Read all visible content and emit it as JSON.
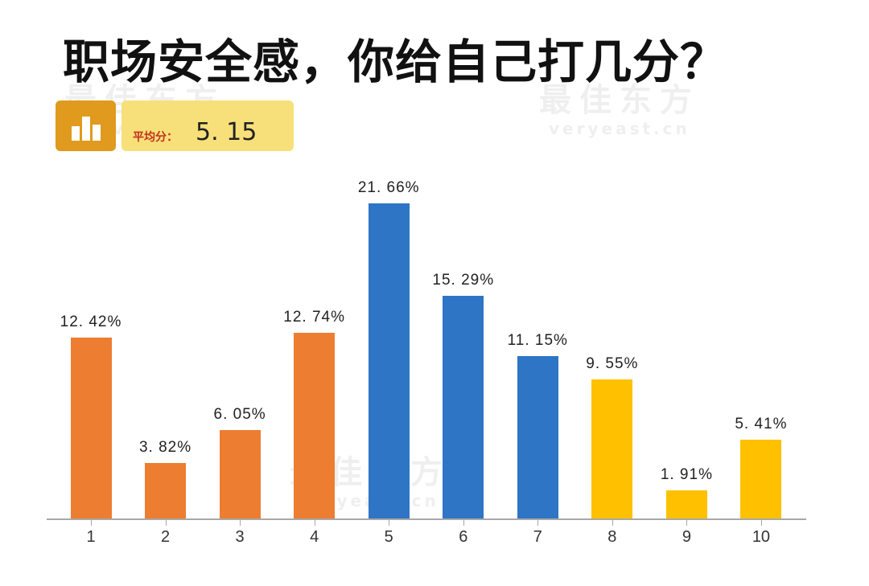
{
  "title": "职场安全感，你给自己打几分？",
  "watermark": {
    "cn": "最佳东方",
    "en": "veryeast.cn"
  },
  "summary": {
    "icon": "bar-chart-icon",
    "label": "平均分：",
    "value": "5. 15"
  },
  "colors": {
    "low": "#ed7d31",
    "mid": "#2e75c5",
    "high": "#ffc000",
    "badge_icon_bg": "#e09a1d",
    "badge_bg": "#f7e07a",
    "label_red": "#c4311c",
    "axis": "#a8a8a8"
  },
  "chart_data": {
    "type": "bar",
    "title": "职场安全感，你给自己打几分？",
    "subtitle": "平均分：5.15",
    "xlabel": "",
    "ylabel": "",
    "categories": [
      "1",
      "2",
      "3",
      "4",
      "5",
      "6",
      "7",
      "8",
      "9",
      "10"
    ],
    "values": [
      12.42,
      3.82,
      6.05,
      12.74,
      21.66,
      15.29,
      11.15,
      9.55,
      1.91,
      5.41
    ],
    "value_labels": [
      "12. 42%",
      "3. 82%",
      "6. 05%",
      "12. 74%",
      "21. 66%",
      "15. 29%",
      "11. 15%",
      "9. 55%",
      "1. 91%",
      "5. 41%"
    ],
    "bar_colors": [
      "#ed7d31",
      "#ed7d31",
      "#ed7d31",
      "#ed7d31",
      "#2e75c5",
      "#2e75c5",
      "#2e75c5",
      "#ffc000",
      "#ffc000",
      "#ffc000"
    ],
    "unit": "%",
    "ylim": [
      0,
      22
    ],
    "grid": false,
    "legend": null
  }
}
